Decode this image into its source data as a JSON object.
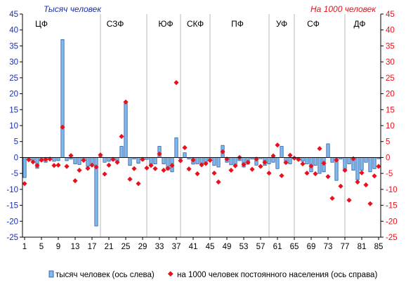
{
  "chart_data": {
    "type": "bar",
    "left_axis_unit": "Тысяч человек",
    "right_axis_unit": "На 1000 человек",
    "left_ylim": [
      -25,
      45
    ],
    "right_ylim": [
      -25,
      45
    ],
    "left_yticks": [
      -25,
      -20,
      -15,
      -10,
      -5,
      0,
      5,
      10,
      15,
      20,
      25,
      30,
      35,
      40,
      45
    ],
    "right_yticks": [
      -25,
      -20,
      -15,
      -10,
      -5,
      0,
      5,
      10,
      15,
      20,
      25,
      30,
      35,
      40,
      45
    ],
    "x_tick_labels": [
      "1",
      "5",
      "9",
      "13",
      "17",
      "21",
      "25",
      "29",
      "33",
      "37",
      "41",
      "45",
      "49",
      "53",
      "57",
      "61",
      "65",
      "69",
      "73",
      "77",
      "81",
      "85"
    ],
    "x_range": [
      1,
      85
    ],
    "grid": false,
    "region_labels": [
      {
        "label": "ЦФ",
        "center": 5
      },
      {
        "label": "СЗФ",
        "center": 22.5
      },
      {
        "label": "ЮФ",
        "center": 34.5
      },
      {
        "label": "СКФ",
        "center": 41.5
      },
      {
        "label": "ПФ",
        "center": 51.5
      },
      {
        "label": "УФ",
        "center": 62
      },
      {
        "label": "СФ",
        "center": 69.5
      },
      {
        "label": "ДФ",
        "center": 80.5
      }
    ],
    "region_dividers": [
      18.5,
      29.5,
      37.5,
      44.5,
      58.5,
      64.5,
      76.5
    ],
    "series": [
      {
        "name": "тысяч человек (ось слева)",
        "kind": "bar",
        "axis": "left",
        "color": "#7fbaec",
        "edge": "#1f4e9c",
        "values": [
          -6.3,
          -1.0,
          -0.9,
          -3.4,
          -1.2,
          -1.5,
          -0.4,
          -1.2,
          -1.0,
          37.0,
          -1.0,
          -0.5,
          -2.0,
          -2.2,
          -0.6,
          -2.8,
          -2.5,
          -21.5,
          0.3,
          -1.5,
          -1.2,
          -1.0,
          -1.2,
          3.5,
          17.0,
          -2.5,
          -0.5,
          -1.8,
          -1.0,
          -0.6,
          -2.6,
          -2.0,
          3.5,
          -2.0,
          -3.9,
          -4.5,
          6.2,
          -0.4,
          1.5,
          -0.5,
          -2.1,
          -2.0,
          -2.4,
          -2.0,
          -1.0,
          -2.5,
          -3.0,
          3.8,
          -1.5,
          -2.3,
          -2.5,
          -1.0,
          -3.0,
          -2.1,
          -0.5,
          -2.4,
          -0.4,
          -2.5,
          -2.0,
          -1.5,
          -3.5,
          3.5,
          -1.5,
          -2.0,
          -0.5,
          -1.0,
          -1.2,
          -2.0,
          -4.5,
          -2.5,
          -5.0,
          -4.5,
          4.3,
          -1.5,
          -7.2,
          -0.5,
          -4.3,
          -2.0,
          -4.0,
          -7.0,
          -4.0,
          -1.5,
          -4.5,
          -3.5,
          -0.4
        ]
      },
      {
        "name": "на 1000 человек постоянного населения (ось справа)",
        "kind": "scatter",
        "axis": "right",
        "color": "#e8101c",
        "values": [
          -8.2,
          -0.7,
          -1.4,
          -2.5,
          -0.8,
          -0.6,
          -0.5,
          -2.5,
          -2.4,
          9.5,
          -2.8,
          0.6,
          -7.3,
          -4.0,
          -0.9,
          -3.4,
          -2.4,
          -3.0,
          0.8,
          -5.2,
          -2.4,
          -0.6,
          -1.5,
          6.6,
          17.4,
          -6.8,
          -3.5,
          -8.2,
          -0.6,
          -3.3,
          -2.5,
          -3.5,
          1.1,
          -4.0,
          -3.4,
          -2.5,
          23.5,
          -1.0,
          3.1,
          -3.6,
          -0.8,
          -5.1,
          -2.3,
          -1.9,
          -0.9,
          -4.9,
          -7.7,
          1.8,
          -0.5,
          -4.0,
          -2.6,
          0.0,
          -2.2,
          -1.5,
          -3.7,
          -0.5,
          -2.8,
          -1.5,
          -4.9,
          0.5,
          3.9,
          -5.7,
          -1.6,
          0.7,
          -0.2,
          -0.6,
          -2.0,
          -4.9,
          -2.7,
          -5.1,
          2.8,
          -1.8,
          -6.0,
          -12.8,
          -0.8,
          -9.0,
          -4.0,
          -13.4,
          -0.4,
          -7.7,
          -4.8,
          -8.6,
          -14.5,
          -5.8,
          -2.8
        ]
      }
    ]
  }
}
